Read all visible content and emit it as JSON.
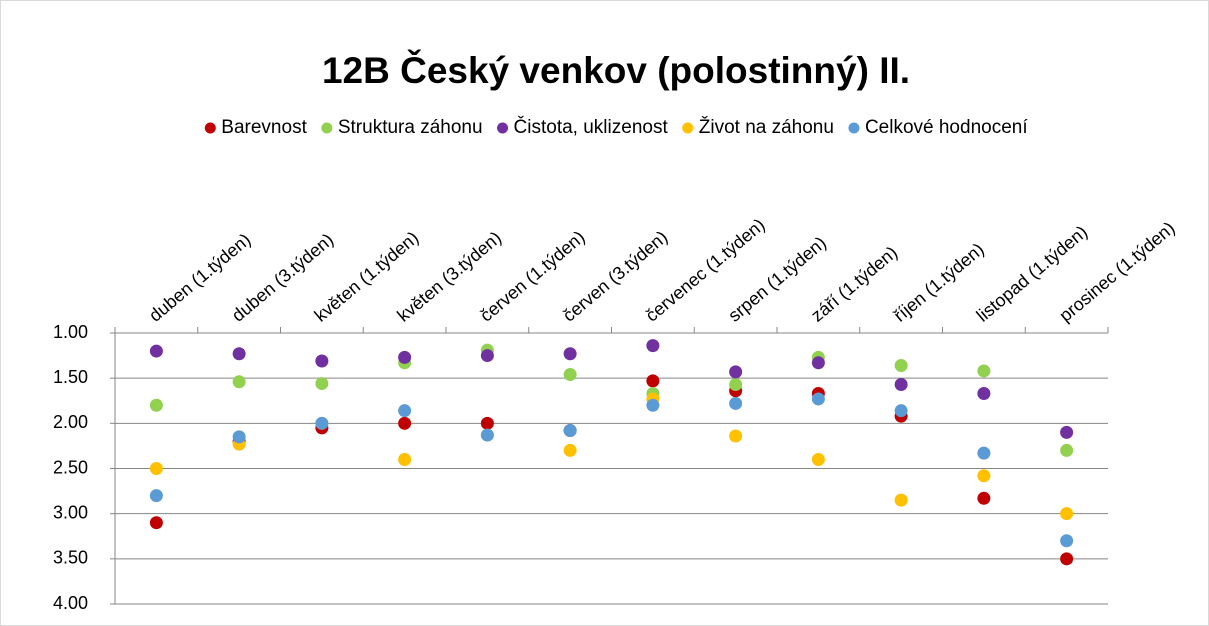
{
  "chart_data": {
    "type": "scatter",
    "title": "12B  Český venkov (polostinný) II.",
    "categories": [
      "duben (1.týden)",
      "duben (3.týden)",
      "květen (1.týden)",
      "květen (3.týden)",
      "červen (1.týden)",
      "červen (3.týden)",
      "červenec (1.týden)",
      "srpen (1.týden)",
      "září (1.týden)",
      "říjen (1.týden)",
      "listopad (1.týden)",
      "prosinec (1.týden)"
    ],
    "series": [
      {
        "name": "Barevnost",
        "color": "#c00000",
        "values": [
          3.1,
          2.2,
          2.05,
          2.0,
          2.0,
          2.08,
          1.53,
          1.64,
          1.67,
          1.92,
          2.83,
          3.5
        ]
      },
      {
        "name": "Struktura záhonu",
        "color": "#92d050",
        "values": [
          1.8,
          1.54,
          1.56,
          1.33,
          1.19,
          1.46,
          1.67,
          1.57,
          1.27,
          1.36,
          1.42,
          2.3
        ]
      },
      {
        "name": "Čistota, uklizenost",
        "color": "#7030a0",
        "values": [
          1.2,
          1.23,
          1.31,
          1.27,
          1.25,
          1.23,
          1.14,
          1.43,
          1.33,
          1.57,
          1.67,
          2.1
        ]
      },
      {
        "name": "Život na záhonu",
        "color": "#ffc000",
        "values": [
          2.5,
          2.23,
          2.0,
          2.4,
          2.13,
          2.3,
          1.73,
          2.14,
          2.4,
          2.85,
          2.58,
          3.0
        ]
      },
      {
        "name": "Celkové hodnocení",
        "color": "#5b9bd5",
        "values": [
          2.8,
          2.15,
          2.0,
          1.86,
          2.13,
          2.08,
          1.8,
          1.78,
          1.73,
          1.86,
          2.33,
          3.3
        ]
      }
    ],
    "ylim": [
      1,
      4
    ],
    "yticks": [
      {
        "value": 1,
        "label": "1.00"
      },
      {
        "value": 1.5,
        "label": "1.50"
      },
      {
        "value": 2,
        "label": "2.00"
      },
      {
        "value": 2.5,
        "label": "2.50"
      },
      {
        "value": 3,
        "label": "3.00"
      },
      {
        "value": 3.5,
        "label": "3.50"
      },
      {
        "value": 4,
        "label": "4.00"
      }
    ],
    "y_inverted": true,
    "grid": true,
    "legend": "top"
  }
}
